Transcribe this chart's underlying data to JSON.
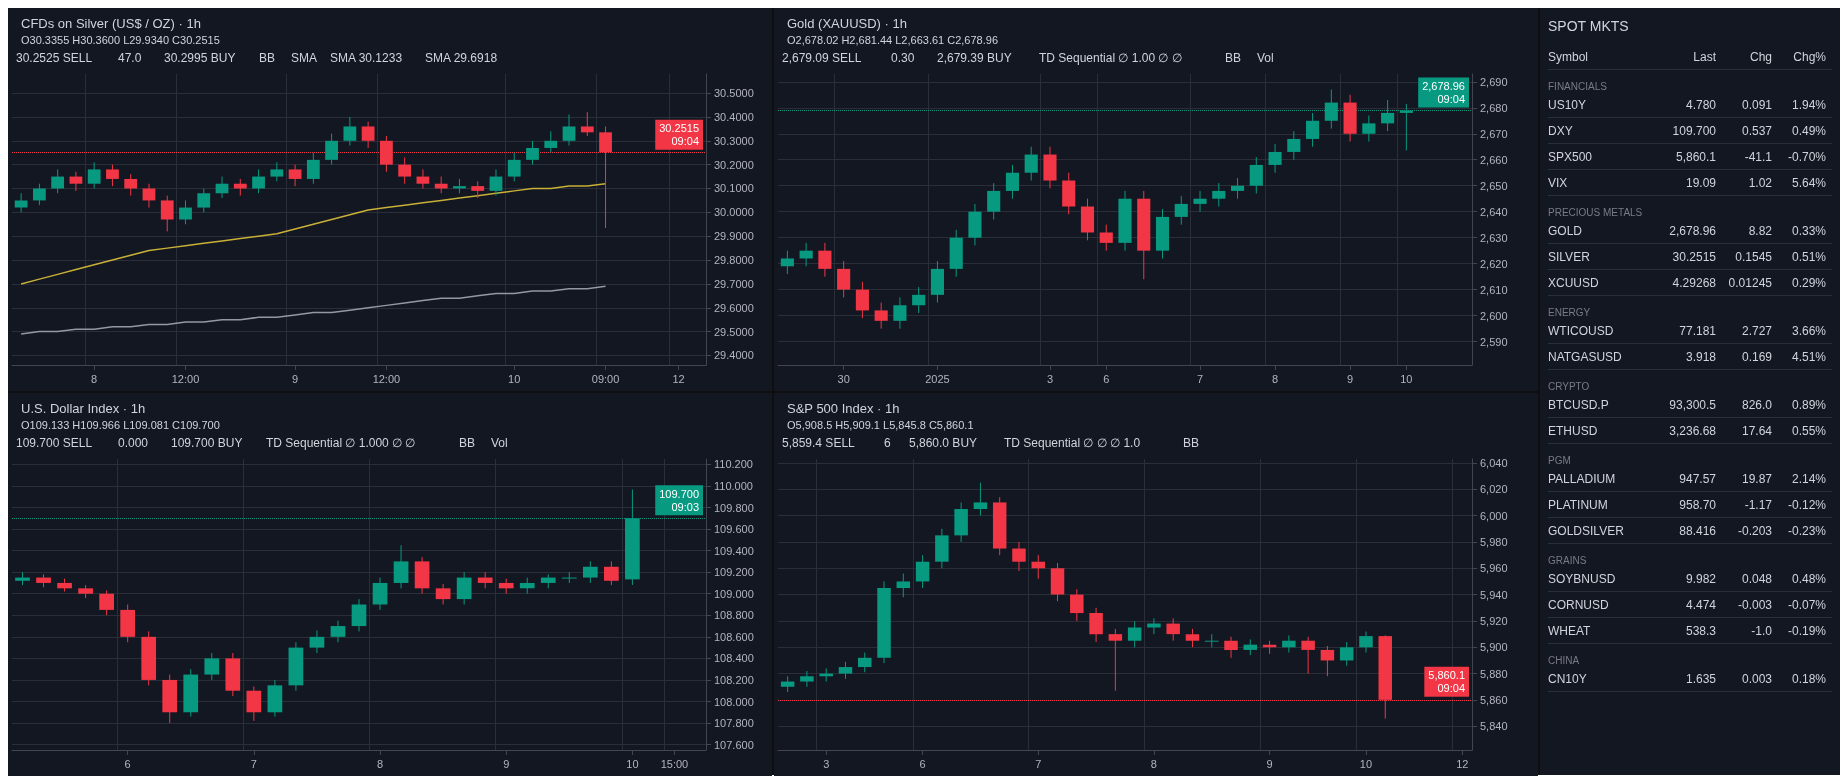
{
  "chart_data": [
    {
      "type": "candlestick",
      "title": "CFDs on Silver (US$ / OZ) · 1h",
      "subtitle": "O30.3355 H30.3600 L29.9340 C30.2515",
      "grid": true,
      "annotations": [
        "30.2525 SELL",
        "47.0",
        "30.2995 BUY",
        "BB",
        "SMA",
        "SMA 30.1233",
        "SMA 29.6918"
      ],
      "categories": [
        null,
        null,
        null,
        null,
        "8",
        null,
        null,
        null,
        null,
        "12:00",
        null,
        null,
        null,
        null,
        null,
        "9",
        null,
        null,
        null,
        null,
        "12:00",
        null,
        null,
        null,
        null,
        null,
        null,
        "10",
        null,
        null,
        null,
        null,
        "09:00",
        null,
        null,
        null,
        "12",
        null
      ],
      "ohlc": [
        [
          30.02,
          30.08,
          30.0,
          30.05
        ],
        [
          30.05,
          30.12,
          30.03,
          30.1
        ],
        [
          30.1,
          30.18,
          30.08,
          30.15
        ],
        [
          30.15,
          30.17,
          30.09,
          30.12
        ],
        [
          30.12,
          30.21,
          30.1,
          30.18
        ],
        [
          30.18,
          30.2,
          30.11,
          30.14
        ],
        [
          30.14,
          30.16,
          30.07,
          30.1
        ],
        [
          30.1,
          30.12,
          30.02,
          30.05
        ],
        [
          30.05,
          30.07,
          29.92,
          29.97
        ],
        [
          29.97,
          30.05,
          29.95,
          30.02
        ],
        [
          30.02,
          30.1,
          30.0,
          30.08
        ],
        [
          30.08,
          30.15,
          30.06,
          30.12
        ],
        [
          30.12,
          30.14,
          30.07,
          30.1
        ],
        [
          30.1,
          30.18,
          30.08,
          30.15
        ],
        [
          30.15,
          30.21,
          30.13,
          30.18
        ],
        [
          30.18,
          30.2,
          30.11,
          30.14
        ],
        [
          30.14,
          30.25,
          30.12,
          30.22
        ],
        [
          30.22,
          30.33,
          30.2,
          30.3
        ],
        [
          30.3,
          30.4,
          30.28,
          30.36
        ],
        [
          30.36,
          30.38,
          30.27,
          30.3
        ],
        [
          30.3,
          30.32,
          30.17,
          30.2
        ],
        [
          30.2,
          30.23,
          30.12,
          30.15
        ],
        [
          30.15,
          30.18,
          30.1,
          30.12
        ],
        [
          30.12,
          30.15,
          30.08,
          30.1
        ],
        [
          30.1,
          30.14,
          30.08,
          30.11
        ],
        [
          30.11,
          30.13,
          30.06,
          30.09
        ],
        [
          30.09,
          30.18,
          30.07,
          30.15
        ],
        [
          30.15,
          30.25,
          30.13,
          30.22
        ],
        [
          30.22,
          30.3,
          30.2,
          30.27
        ],
        [
          30.27,
          30.34,
          30.25,
          30.3
        ],
        [
          30.3,
          30.41,
          30.28,
          30.36
        ],
        [
          30.36,
          30.42,
          30.32,
          30.3355
        ],
        [
          30.3355,
          30.36,
          29.934,
          30.2515
        ],
        null,
        null,
        null,
        null,
        null
      ],
      "series": [
        {
          "type": "line",
          "color": "#c9b037",
          "values": [
            29.7,
            29.72,
            29.74,
            29.76,
            29.78,
            29.8,
            29.82,
            29.84,
            29.85,
            29.86,
            29.87,
            29.88,
            29.89,
            29.9,
            29.91,
            29.93,
            29.95,
            29.97,
            29.99,
            30.01,
            30.02,
            30.03,
            30.04,
            30.05,
            30.06,
            30.07,
            30.08,
            30.09,
            30.1,
            30.1,
            30.11,
            30.11,
            30.12,
            null,
            null,
            null,
            null,
            null
          ]
        },
        {
          "type": "line",
          "color": "#9598a1",
          "values": [
            29.49,
            29.5,
            29.5,
            29.51,
            29.51,
            29.52,
            29.52,
            29.53,
            29.53,
            29.54,
            29.54,
            29.55,
            29.55,
            29.56,
            29.56,
            29.57,
            29.58,
            29.58,
            29.59,
            29.6,
            29.61,
            29.62,
            29.63,
            29.64,
            29.64,
            29.65,
            29.66,
            29.66,
            29.67,
            29.67,
            29.68,
            29.68,
            29.69,
            null,
            null,
            null,
            null,
            null
          ]
        }
      ],
      "ylim": [
        29.36,
        30.58
      ],
      "yticks": [
        {
          "value": 29.4,
          "label": "29.4000"
        },
        {
          "value": 29.5,
          "label": "29.5000"
        },
        {
          "value": 29.6,
          "label": "29.6000"
        },
        {
          "value": 29.7,
          "label": "29.7000"
        },
        {
          "value": 29.8,
          "label": "29.8000"
        },
        {
          "value": 29.9,
          "label": "29.9000"
        },
        {
          "value": 30,
          "label": "30.0000"
        },
        {
          "value": 30.1,
          "label": "30.1000"
        },
        {
          "value": 30.2,
          "label": "30.2000"
        },
        {
          "value": 30.3,
          "label": "30.3000"
        },
        {
          "value": 30.4,
          "label": "30.4000"
        },
        {
          "value": 30.5,
          "label": "30.5000"
        }
      ],
      "ref_lines": [
        {
          "axis": "y",
          "value": 30.2515,
          "label": "30.2515 09:04",
          "color": "#f23645",
          "line_style": "dotted"
        }
      ]
    },
    {
      "type": "candlestick",
      "title": "Gold (XAUUSD) · 1h",
      "subtitle": "O2,678.02 H2,681.44 L2,663.61 C2,678.96",
      "grid": true,
      "annotations": [
        "2,679.09 SELL",
        "0.30",
        "2,679.39 BUY",
        "TD Sequential ∅ 1.00 ∅ ∅",
        "BB",
        "Vol"
      ],
      "categories": [
        null,
        null,
        null,
        "30",
        null,
        null,
        null,
        null,
        "2025",
        null,
        null,
        null,
        null,
        null,
        "3",
        null,
        null,
        "6",
        null,
        null,
        null,
        null,
        "7",
        null,
        null,
        null,
        "8",
        null,
        null,
        null,
        "9",
        null,
        null,
        "10",
        null,
        null,
        null
      ],
      "ohlc": [
        [
          2619,
          2625,
          2616,
          2622
        ],
        [
          2622,
          2628,
          2619,
          2625
        ],
        [
          2625,
          2628,
          2615,
          2618
        ],
        [
          2618,
          2621,
          2607,
          2610
        ],
        [
          2610,
          2613,
          2599,
          2602
        ],
        [
          2602,
          2605,
          2595,
          2598
        ],
        [
          2598,
          2607,
          2595,
          2604
        ],
        [
          2604,
          2611,
          2601,
          2608
        ],
        [
          2608,
          2621,
          2605,
          2618
        ],
        [
          2618,
          2633,
          2615,
          2630
        ],
        [
          2630,
          2643,
          2627,
          2640
        ],
        [
          2640,
          2651,
          2637,
          2648
        ],
        [
          2648,
          2658,
          2645,
          2655
        ],
        [
          2655,
          2665,
          2652,
          2662
        ],
        [
          2662,
          2665,
          2649,
          2652
        ],
        [
          2652,
          2655,
          2639,
          2642
        ],
        [
          2642,
          2645,
          2629,
          2632
        ],
        [
          2632,
          2635,
          2625,
          2628
        ],
        [
          2628,
          2648,
          2625,
          2645
        ],
        [
          2645,
          2648,
          2614,
          2625
        ],
        [
          2625,
          2641,
          2622,
          2638
        ],
        [
          2638,
          2646,
          2635,
          2643
        ],
        [
          2643,
          2648,
          2640,
          2645
        ],
        [
          2645,
          2651,
          2642,
          2648
        ],
        [
          2648,
          2653,
          2645,
          2650
        ],
        [
          2650,
          2661,
          2647,
          2658
        ],
        [
          2658,
          2666,
          2655,
          2663
        ],
        [
          2663,
          2671,
          2660,
          2668
        ],
        [
          2668,
          2678,
          2665,
          2675
        ],
        [
          2675,
          2687,
          2672,
          2682
        ],
        [
          2682,
          2685,
          2667,
          2670
        ],
        [
          2670,
          2677,
          2667,
          2674
        ],
        [
          2674,
          2683,
          2671,
          2678.02
        ],
        [
          2678.02,
          2681.44,
          2663.61,
          2678.96
        ],
        null,
        null,
        null
      ],
      "ylim": [
        2581,
        2693
      ],
      "yticks": [
        {
          "value": 2590,
          "label": "2,590"
        },
        {
          "value": 2600,
          "label": "2,600"
        },
        {
          "value": 2610,
          "label": "2,610"
        },
        {
          "value": 2620,
          "label": "2,620"
        },
        {
          "value": 2630,
          "label": "2,630"
        },
        {
          "value": 2640,
          "label": "2,640"
        },
        {
          "value": 2650,
          "label": "2,650"
        },
        {
          "value": 2660,
          "label": "2,660"
        },
        {
          "value": 2670,
          "label": "2,670"
        },
        {
          "value": 2680,
          "label": "2,680"
        },
        {
          "value": 2690,
          "label": "2,690"
        }
      ],
      "ref_lines": [
        {
          "axis": "y",
          "value": 2678.96,
          "label": "2,678.96 09:04",
          "color": "#089981",
          "line_style": "dotted"
        }
      ]
    },
    {
      "type": "candlestick",
      "title": "U.S. Dollar Index · 1h",
      "subtitle": "O109.133 H109.966 L109.081 C109.700",
      "grid": true,
      "annotations": [
        "109.700 SELL",
        "0.000",
        "109.700 BUY",
        "TD Sequential ∅ 1.000 ∅ ∅",
        "BB",
        "Vol"
      ],
      "categories": [
        null,
        null,
        null,
        null,
        null,
        "6",
        null,
        null,
        null,
        null,
        null,
        "7",
        null,
        null,
        null,
        null,
        null,
        "8",
        null,
        null,
        null,
        null,
        null,
        "9",
        null,
        null,
        null,
        null,
        null,
        "10",
        null,
        "15:00",
        null
      ],
      "ohlc": [
        [
          109.12,
          109.2,
          109.08,
          109.15
        ],
        [
          109.15,
          109.18,
          109.06,
          109.1
        ],
        [
          109.1,
          109.14,
          109.02,
          109.05
        ],
        [
          109.05,
          109.08,
          108.96,
          109.0
        ],
        [
          109.0,
          109.03,
          108.8,
          108.85
        ],
        [
          108.85,
          108.9,
          108.55,
          108.6
        ],
        [
          108.6,
          108.65,
          108.15,
          108.2
        ],
        [
          108.2,
          108.25,
          107.8,
          107.9
        ],
        [
          107.9,
          108.3,
          107.86,
          108.25
        ],
        [
          108.25,
          108.45,
          108.2,
          108.4
        ],
        [
          108.4,
          108.45,
          108.05,
          108.1
        ],
        [
          108.1,
          108.14,
          107.82,
          107.9
        ],
        [
          107.9,
          108.2,
          107.86,
          108.15
        ],
        [
          108.15,
          108.55,
          108.1,
          108.5
        ],
        [
          108.5,
          108.66,
          108.45,
          108.6
        ],
        [
          108.6,
          108.75,
          108.55,
          108.7
        ],
        [
          108.7,
          108.95,
          108.65,
          108.9
        ],
        [
          108.9,
          109.15,
          108.85,
          109.1
        ],
        [
          109.1,
          109.45,
          109.05,
          109.3
        ],
        [
          109.3,
          109.34,
          109.0,
          109.05
        ],
        [
          109.05,
          109.09,
          108.9,
          108.95
        ],
        [
          108.95,
          109.2,
          108.9,
          109.15
        ],
        [
          109.15,
          109.2,
          109.05,
          109.1
        ],
        [
          109.1,
          109.14,
          109.0,
          109.05
        ],
        [
          109.05,
          109.15,
          109.0,
          109.1
        ],
        [
          109.1,
          109.18,
          109.05,
          109.15
        ],
        [
          109.15,
          109.2,
          109.1,
          109.15
        ],
        [
          109.15,
          109.3,
          109.1,
          109.25
        ],
        [
          109.25,
          109.3,
          109.08,
          109.12
        ],
        [
          109.133,
          109.966,
          109.081,
          109.7
        ],
        null,
        null,
        null
      ],
      "ylim": [
        107.55,
        110.25
      ],
      "yticks": [
        {
          "value": 107.6,
          "label": "107.600"
        },
        {
          "value": 107.8,
          "label": "107.800"
        },
        {
          "value": 108,
          "label": "108.000"
        },
        {
          "value": 108.2,
          "label": "108.200"
        },
        {
          "value": 108.4,
          "label": "108.400"
        },
        {
          "value": 108.6,
          "label": "108.600"
        },
        {
          "value": 108.8,
          "label": "108.800"
        },
        {
          "value": 109,
          "label": "109.000"
        },
        {
          "value": 109.2,
          "label": "109.200"
        },
        {
          "value": 109.4,
          "label": "109.400"
        },
        {
          "value": 109.6,
          "label": "109.600"
        },
        {
          "value": 109.8,
          "label": "109.800"
        },
        {
          "value": 110,
          "label": "110.000"
        },
        {
          "value": 110.2,
          "label": "110.200"
        }
      ],
      "ref_lines": [
        {
          "axis": "y",
          "value": 109.7,
          "label": "109.700 09:03",
          "color": "#089981",
          "line_style": "dotted"
        }
      ]
    },
    {
      "type": "candlestick",
      "title": "S&P 500 Index · 1h",
      "subtitle": "O5,908.5 H5,909.1 L5,845.8 C5,860.1",
      "grid": true,
      "annotations": [
        "5,859.4 SELL",
        "6",
        "5,860.0 BUY",
        "TD Sequential ∅ ∅ ∅ 1.0",
        "BB"
      ],
      "categories": [
        null,
        null,
        "3",
        null,
        null,
        null,
        null,
        "6",
        null,
        null,
        null,
        null,
        null,
        "7",
        null,
        null,
        null,
        null,
        null,
        "8",
        null,
        null,
        null,
        null,
        null,
        "9",
        null,
        null,
        null,
        null,
        "10",
        null,
        null,
        null,
        null,
        "12"
      ],
      "ohlc": [
        [
          5870,
          5878,
          5866,
          5874
        ],
        [
          5874,
          5882,
          5870,
          5878
        ],
        [
          5878,
          5884,
          5874,
          5880
        ],
        [
          5880,
          5889,
          5876,
          5885
        ],
        [
          5885,
          5896,
          5881,
          5892
        ],
        [
          5892,
          5950,
          5888,
          5945
        ],
        [
          5945,
          5956,
          5938,
          5950
        ],
        [
          5950,
          5970,
          5945,
          5965
        ],
        [
          5965,
          5990,
          5960,
          5985
        ],
        [
          5985,
          6010,
          5980,
          6005
        ],
        [
          6005,
          6025,
          6000,
          6010
        ],
        [
          6010,
          6014,
          5970,
          5975
        ],
        [
          5975,
          5980,
          5958,
          5965
        ],
        [
          5965,
          5970,
          5952,
          5960
        ],
        [
          5960,
          5964,
          5935,
          5940
        ],
        [
          5940,
          5944,
          5920,
          5926
        ],
        [
          5926,
          5930,
          5904,
          5910
        ],
        [
          5910,
          5914,
          5867,
          5905
        ],
        [
          5905,
          5920,
          5900,
          5915
        ],
        [
          5915,
          5922,
          5910,
          5918
        ],
        [
          5918,
          5922,
          5905,
          5910
        ],
        [
          5910,
          5914,
          5900,
          5905
        ],
        [
          5905,
          5910,
          5900,
          5905
        ],
        [
          5905,
          5908,
          5892,
          5898
        ],
        [
          5898,
          5906,
          5894,
          5902
        ],
        [
          5902,
          5905,
          5895,
          5900
        ],
        [
          5900,
          5909,
          5896,
          5905
        ],
        [
          5905,
          5908,
          5880,
          5898
        ],
        [
          5898,
          5901,
          5878,
          5890
        ],
        [
          5890,
          5904,
          5886,
          5900
        ],
        [
          5900,
          5912,
          5896,
          5908.5
        ],
        [
          5908.5,
          5909.1,
          5845.8,
          5860.1
        ],
        null,
        null,
        null,
        null
      ],
      "ylim": [
        5822,
        6043
      ],
      "yticks": [
        {
          "value": 5840,
          "label": "5,840"
        },
        {
          "value": 5860,
          "label": "5,860"
        },
        {
          "value": 5880,
          "label": "5,880"
        },
        {
          "value": 5900,
          "label": "5,900"
        },
        {
          "value": 5920,
          "label": "5,920"
        },
        {
          "value": 5940,
          "label": "5,940"
        },
        {
          "value": 5960,
          "label": "5,960"
        },
        {
          "value": 5980,
          "label": "5,980"
        },
        {
          "value": 6000,
          "label": "6,000"
        },
        {
          "value": 6020,
          "label": "6,020"
        },
        {
          "value": 6040,
          "label": "6,040"
        }
      ],
      "ref_lines": [
        {
          "axis": "y",
          "value": 5860.1,
          "label": "5,860.1 09:04",
          "color": "#f23645",
          "line_style": "dotted"
        }
      ]
    },
    {
      "type": "other",
      "title": "SPOT MKTS",
      "annotations": [
        "Symbol Last Chg Chg%",
        "FINANCIALS",
        "US10Y 4.780 0.091 1.94%",
        "DXY 109.700 0.537 0.49%",
        "SPX500 5,860.1 -41.1 -0.70%",
        "VIX 19.09 1.02 5.64%",
        "PRECIOUS METALS",
        "GOLD 2,678.96 8.82 0.33%",
        "SILVER 30.2515 0.1545 0.51%",
        "XCUUSD 4.29268 0.01245 0.29%",
        "ENERGY",
        "WTICOUSD 77.181 2.727 3.66%",
        "NATGASUSD 3.918 0.169 4.51%",
        "CRYPTO",
        "BTCUSD.P 93,300.5 826.0 0.89%",
        "ETHUSD 3,236.68 17.64 0.55%",
        "PGM",
        "PALLADIUM 947.57 19.87 2.14%",
        "PLATINUM 958.70 -1.17 -0.12%",
        "GOLDSILVER 88.416 -0.203 -0.23%",
        "GRAINS",
        "SOYBNUSD 9.982 0.048 0.48%",
        "CORNUSD 4.474 -0.003 -0.07%",
        "WHEAT 538.3 -1.0 -0.19%",
        "CHINA",
        "CN10Y 1.635 0.003 0.18%"
      ]
    }
  ]
}
